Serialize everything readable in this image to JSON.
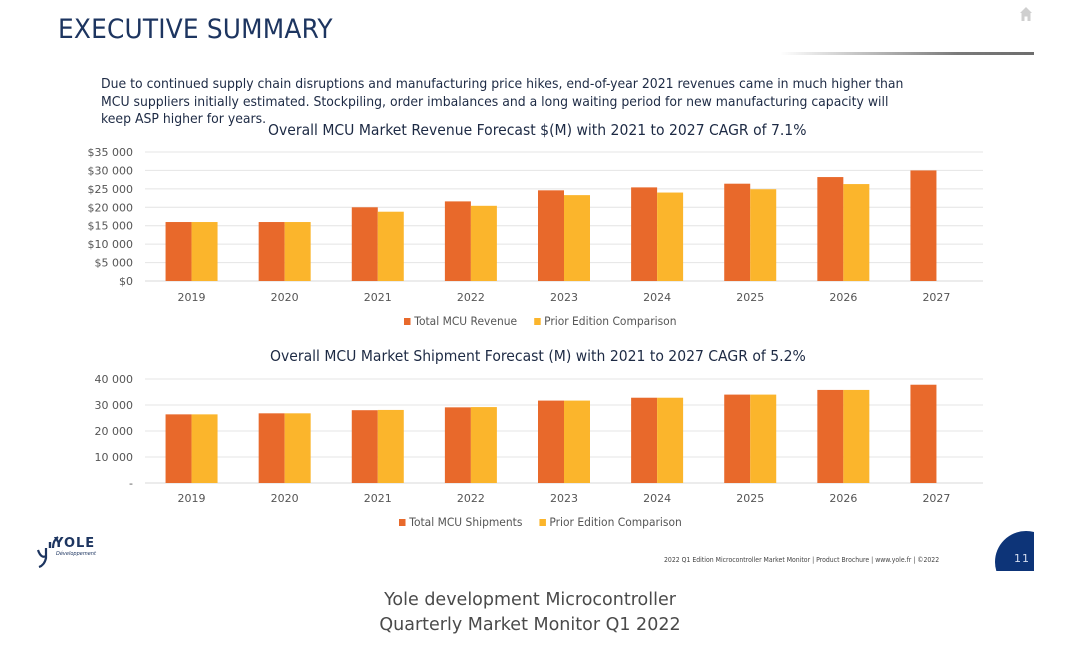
{
  "slide": {
    "title": "EXECUTIVE SUMMARY",
    "home_icon": "home-icon",
    "summary": "Due to continued supply chain disruptions and manufacturing price hikes, end-of-year 2021 revenues came in much higher than MCU suppliers initially estimated. Stockpiling, order imbalances and a long waiting period for new manufacturing capacity will keep ASP higher for years.",
    "logo": {
      "word": "YOLE",
      "sub": "Développement"
    },
    "footer": "2022 Q1 Edition Microcontroller Market Monitor | Product Brochure | www.yole.fr | ©2022",
    "page_number": "11"
  },
  "caption": {
    "line1": "Yole development Microcontroller",
    "line2": "Quarterly Market Monitor Q1 2022"
  },
  "colors": {
    "title": "#1d3560",
    "series_total": "#e8692b",
    "series_prior": "#fbb52c",
    "grid": "#e4e4e4",
    "badge": "#0d3478"
  },
  "chart_data": [
    {
      "type": "bar",
      "title": "Overall MCU Market Revenue Forecast $(M) with 2021 to 2027 CAGR of 7.1%",
      "xlabel": "",
      "ylabel": "",
      "categories": [
        "2019",
        "2020",
        "2021",
        "2022",
        "2023",
        "2024",
        "2025",
        "2026",
        "2027"
      ],
      "series": [
        {
          "name": "Total MCU Revenue",
          "values": [
            16000,
            16000,
            20000,
            21600,
            24600,
            25400,
            26400,
            28200,
            30000
          ]
        },
        {
          "name": "Prior Edition Comparison",
          "values": [
            16000,
            16000,
            18800,
            20400,
            23300,
            24000,
            24900,
            26300,
            null
          ]
        }
      ],
      "ylim": [
        0,
        35000
      ],
      "yticks": [
        0,
        5000,
        10000,
        15000,
        20000,
        25000,
        30000,
        35000
      ],
      "ytick_labels": [
        "$0",
        "$5 000",
        "$10 000",
        "$15 000",
        "$20 000",
        "$25 000",
        "$30 000",
        "$35 000"
      ],
      "grid": true,
      "legend": "bottom-center"
    },
    {
      "type": "bar",
      "title": "Overall MCU Market Shipment Forecast (M) with 2021 to 2027 CAGR of 5.2%",
      "xlabel": "",
      "ylabel": "",
      "categories": [
        "2019",
        "2020",
        "2021",
        "2022",
        "2023",
        "2024",
        "2025",
        "2026",
        "2027"
      ],
      "series": [
        {
          "name": "Total MCU Shipments",
          "values": [
            26400,
            26800,
            28000,
            29100,
            31700,
            32800,
            34000,
            35800,
            37800
          ]
        },
        {
          "name": "Prior Edition Comparison",
          "values": [
            26400,
            26800,
            28100,
            29200,
            31700,
            32800,
            34000,
            35800,
            null
          ]
        }
      ],
      "ylim": [
        0,
        40000
      ],
      "yticks": [
        0,
        10000,
        20000,
        30000,
        40000
      ],
      "ytick_labels": [
        "-",
        "10 000",
        "20 000",
        "30 000",
        "40 000"
      ],
      "grid": true,
      "legend": "bottom-center"
    }
  ]
}
